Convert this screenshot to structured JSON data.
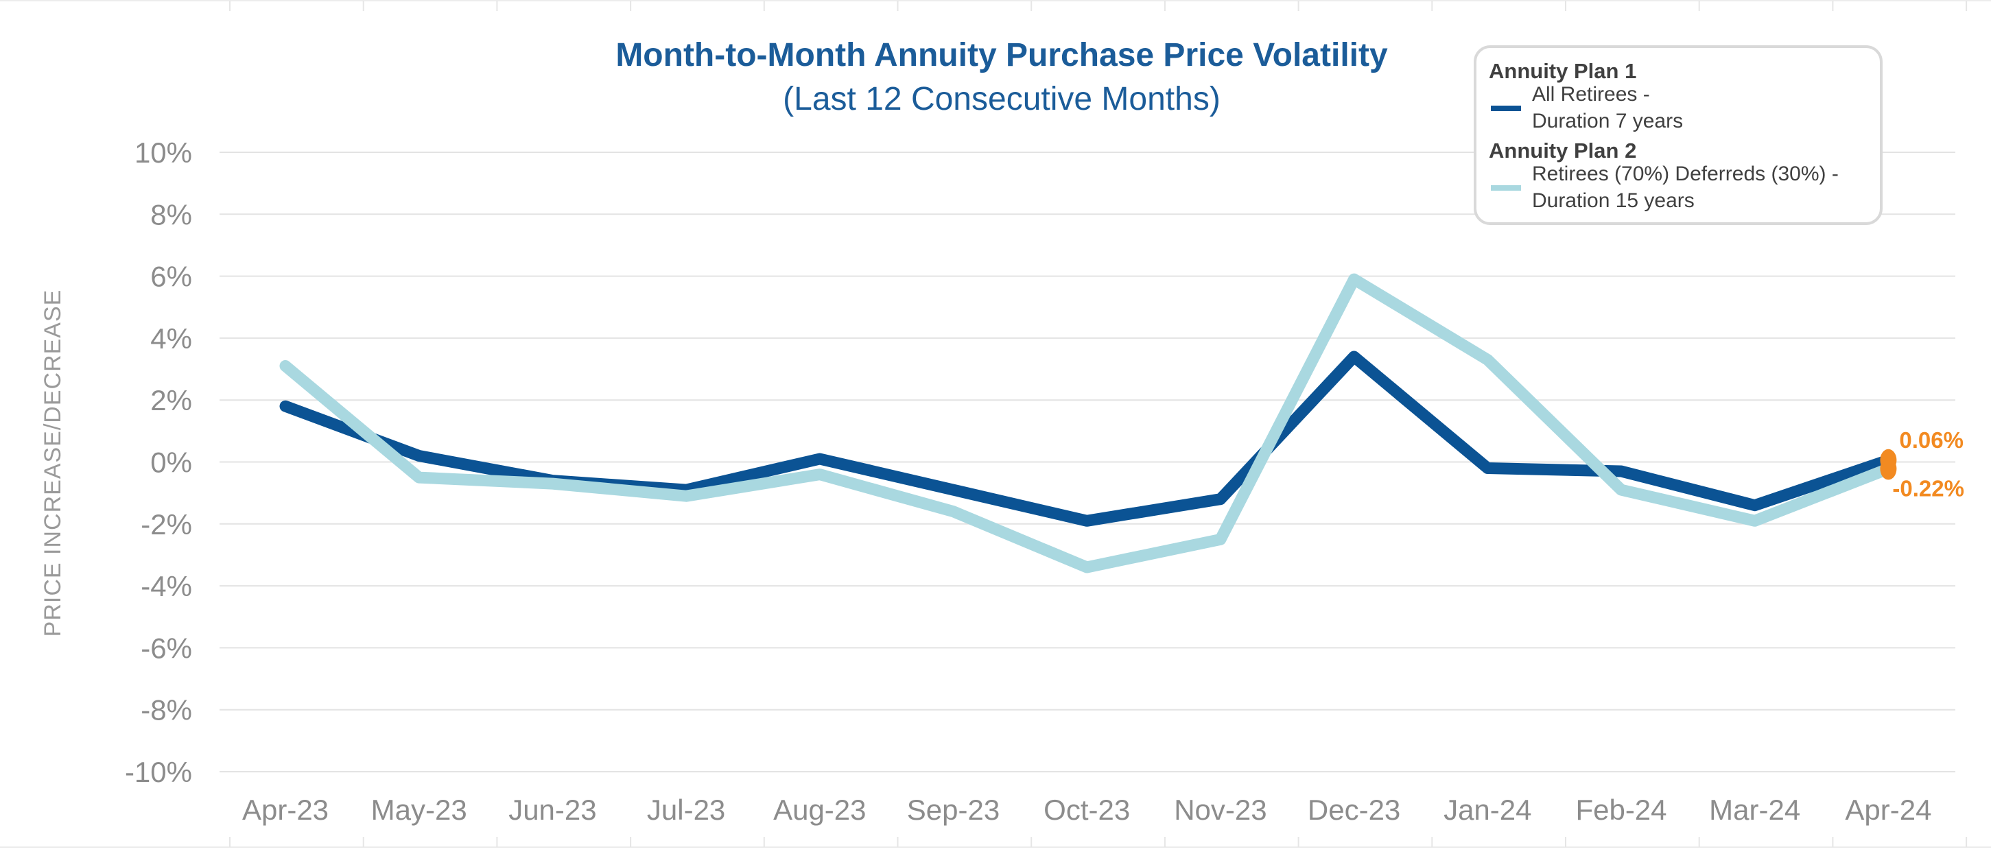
{
  "chart_data": {
    "type": "line",
    "title": "Month-to-Month Annuity Purchase Price Volatility",
    "subtitle": "(Last 12 Consecutive Months)",
    "xlabel": "",
    "ylabel": "PRICE INCREASE/DECREASE",
    "ylim": [
      -10,
      10
    ],
    "y_ticks": [
      10,
      8,
      6,
      4,
      2,
      0,
      -2,
      -4,
      -6,
      -8,
      -10
    ],
    "y_tick_labels": [
      "10%",
      "8%",
      "6%",
      "4%",
      "2%",
      "0%",
      "-2%",
      "-4%",
      "-6%",
      "-8%",
      "-10%"
    ],
    "grid": true,
    "legend_position": "top-right",
    "categories": [
      "Apr-23",
      "May-23",
      "Jun-23",
      "Jul-23",
      "Aug-23",
      "Sep-23",
      "Oct-23",
      "Nov-23",
      "Dec-23",
      "Jan-24",
      "Feb-24",
      "Mar-24",
      "Apr-24"
    ],
    "series": [
      {
        "name": "Annuity Plan 1",
        "description_line1": "All Retirees -",
        "description_line2": "Duration 7 years",
        "color": "#0b5394",
        "values": [
          1.8,
          0.2,
          -0.6,
          -0.9,
          0.1,
          -0.9,
          -1.9,
          -1.2,
          3.4,
          -0.2,
          -0.3,
          -1.4,
          0.06
        ],
        "end_label": "0.06%"
      },
      {
        "name": "Annuity Plan 2",
        "description_line1": "Retirees (70%) Deferreds (30%) -",
        "description_line2": "Duration 15 years",
        "color": "#a9d8e0",
        "values": [
          3.1,
          -0.5,
          -0.7,
          -1.1,
          -0.4,
          -1.6,
          -3.4,
          -2.5,
          5.9,
          3.3,
          -0.9,
          -1.9,
          -0.22
        ],
        "end_label": "-0.22%"
      }
    ],
    "end_marker_color": "#f28a21"
  }
}
